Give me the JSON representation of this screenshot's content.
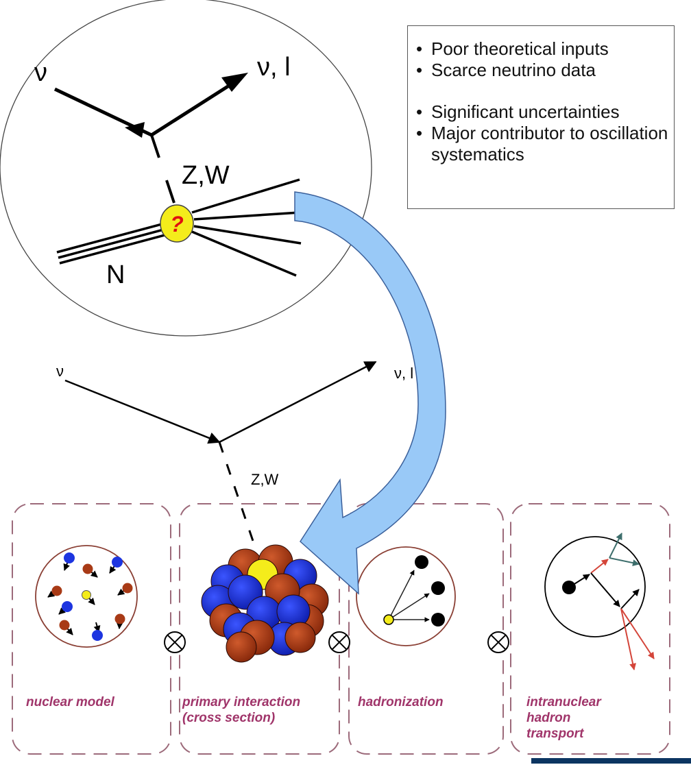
{
  "diagram": {
    "top_vertex": {
      "incoming": "ν",
      "outgoing": "ν, l",
      "boson": "Z,W",
      "target": "N",
      "unknown_marker": "?"
    },
    "middle_vertex": {
      "incoming": "ν",
      "outgoing": "ν, l",
      "boson": "Z,W"
    },
    "bullets_group_1": [
      "Poor theoretical inputs",
      "Scarce neutrino data"
    ],
    "bullets_group_2": [
      "Significant uncertainties",
      "Major contributor to oscillation systematics"
    ],
    "stages": [
      {
        "label": "nuclear model"
      },
      {
        "label": "primary interaction (cross section)"
      },
      {
        "label": "hadronization"
      },
      {
        "label": "intranuclear hadron transport"
      }
    ],
    "operator_symbol": "⊗",
    "colors": {
      "arrow_fill": "#99c9f7",
      "arrow_stroke": "#3a5f9a",
      "dashed_box": "#9c6a7a",
      "label_color": "#a0356a",
      "proton": "#a83a16",
      "neutron": "#1d35e0",
      "struck_nucleon": "#f4ec1b",
      "transport_in": "#d4453a",
      "transport_out": "#3d6e6c"
    }
  }
}
